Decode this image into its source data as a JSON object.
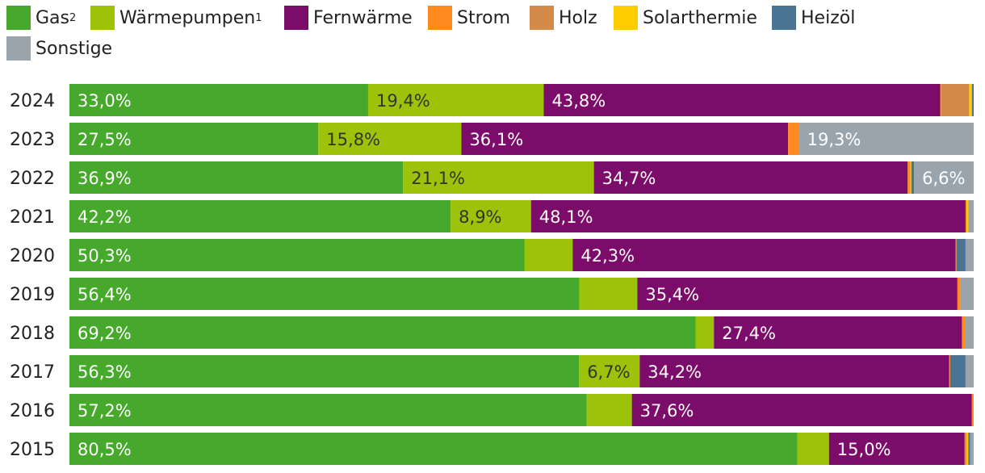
{
  "chart_data": {
    "type": "bar",
    "orientation": "horizontal",
    "stacked": true,
    "normalized": true,
    "xlim": [
      0,
      100
    ],
    "categories": [
      "2024",
      "2023",
      "2022",
      "2021",
      "2020",
      "2019",
      "2018",
      "2017",
      "2016",
      "2015"
    ],
    "series": [
      {
        "name": "Gas",
        "sup": "2",
        "color": "#46a92b",
        "label_color": "#ffffff",
        "values": [
          33.0,
          27.5,
          36.9,
          42.2,
          50.3,
          56.4,
          69.2,
          56.3,
          57.2,
          80.5
        ],
        "labels": [
          "33,0%",
          "27,5%",
          "36,9%",
          "42,2%",
          "50,3%",
          "56,4%",
          "69,2%",
          "56,3%",
          "57,2%",
          "80,5%"
        ]
      },
      {
        "name": "Wärmepumpen",
        "sup": "1",
        "color": "#9dc20a",
        "label_color": "#333333",
        "values": [
          19.4,
          15.8,
          21.1,
          8.9,
          5.3,
          6.4,
          2.0,
          6.7,
          5.0,
          3.5
        ],
        "labels": [
          "19,4%",
          "15,8%",
          "21,1%",
          "8,9%",
          "",
          "",
          "",
          "6,7%",
          "",
          ""
        ]
      },
      {
        "name": "Fernwärme",
        "sup": "",
        "color": "#7b0c69",
        "label_color": "#ffffff",
        "values": [
          43.8,
          36.1,
          34.7,
          48.1,
          42.3,
          35.4,
          27.4,
          34.2,
          37.6,
          15.0
        ],
        "labels": [
          "43,8%",
          "36,1%",
          "34,7%",
          "48,1%",
          "42,3%",
          "35,4%",
          "27,4%",
          "34,2%",
          "37,6%",
          "15,0%"
        ]
      },
      {
        "name": "Strom",
        "sup": "",
        "color": "#ff8a1f",
        "label_color": "#ffffff",
        "values": [
          0.1,
          1.2,
          0.3,
          0.1,
          0.1,
          0.3,
          0.4,
          0.1,
          0.2,
          0.2
        ],
        "labels": [
          "",
          "",
          "",
          "",
          "",
          "",
          "",
          "",
          "",
          ""
        ]
      },
      {
        "name": "Holz",
        "sup": "",
        "color": "#d48b4a",
        "label_color": "#ffffff",
        "values": [
          3.1,
          0.0,
          0.0,
          0.0,
          0.0,
          0.0,
          0.0,
          0.0,
          0.0,
          0.0
        ],
        "labels": [
          "",
          "",
          "",
          "",
          "",
          "",
          "",
          "",
          "",
          ""
        ]
      },
      {
        "name": "Solarthermie",
        "sup": "",
        "color": "#ffcc00",
        "label_color": "#333333",
        "values": [
          0.3,
          0.0,
          0.1,
          0.2,
          0.0,
          0.0,
          0.0,
          0.0,
          0.0,
          0.2
        ],
        "labels": [
          "",
          "",
          "",
          "",
          "",
          "",
          "",
          "",
          "",
          ""
        ]
      },
      {
        "name": "Heizöl",
        "sup": "",
        "color": "#4a7494",
        "label_color": "#ffffff",
        "values": [
          0.2,
          0.0,
          0.3,
          0.0,
          1.0,
          0.0,
          0.0,
          1.7,
          0.0,
          0.2
        ],
        "labels": [
          "",
          "",
          "",
          "",
          "",
          "",
          "",
          "",
          "",
          ""
        ]
      },
      {
        "name": "Sonstige",
        "sup": "",
        "color": "#99a4ad",
        "label_color": "#ffffff",
        "values": [
          0.0,
          19.3,
          6.6,
          0.6,
          0.9,
          1.5,
          0.9,
          0.9,
          0.0,
          0.4
        ],
        "labels": [
          "",
          "19,3%",
          "6,6%",
          "",
          "",
          "",
          "",
          "",
          "",
          ""
        ]
      }
    ]
  }
}
